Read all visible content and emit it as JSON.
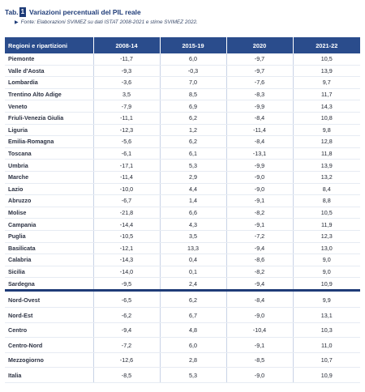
{
  "header": {
    "tab_label": "Tab.",
    "tab_number": "1",
    "title": "Variazioni percentuali del PIL reale",
    "source_arrow": "▶",
    "source": "Fonte: Elaborazioni SVIMEZ su dati ISTAT 2008-2021 e stime SVIMEZ 2022."
  },
  "table": {
    "columns": [
      "Regioni e ripartizioni",
      "2008-14",
      "2015-19",
      "2020",
      "2021-22"
    ],
    "regions": [
      [
        "Piemonte",
        "-11,7",
        "6,0",
        "-9,7",
        "10,5"
      ],
      [
        "Valle d'Aosta",
        "-9,3",
        "-0,3",
        "-9,7",
        "13,9"
      ],
      [
        "Lombardia",
        "-3,6",
        "7,0",
        "-7,6",
        "9,7"
      ],
      [
        "Trentino Alto Adige",
        "3,5",
        "8,5",
        "-8,3",
        "11,7"
      ],
      [
        "Veneto",
        "-7,9",
        "6,9",
        "-9,9",
        "14,3"
      ],
      [
        "Friuli-Venezia Giulia",
        "-11,1",
        "6,2",
        "-8,4",
        "10,8"
      ],
      [
        "Liguria",
        "-12,3",
        "1,2",
        "-11,4",
        "9,8"
      ],
      [
        "Emilia-Romagna",
        "-5,6",
        "6,2",
        "-8,4",
        "12,8"
      ],
      [
        "Toscana",
        "-6,1",
        "6,1",
        "-13,1",
        "11,8"
      ],
      [
        "Umbria",
        "-17,1",
        "5,3",
        "-9,9",
        "13,9"
      ],
      [
        "Marche",
        "-11,4",
        "2,9",
        "-9,0",
        "13,2"
      ],
      [
        "Lazio",
        "-10,0",
        "4,4",
        "-9,0",
        "8,4"
      ],
      [
        "Abruzzo",
        "-6,7",
        "1,4",
        "-9,1",
        "8,8"
      ],
      [
        "Molise",
        "-21,8",
        "6,6",
        "-8,2",
        "10,5"
      ],
      [
        "Campania",
        "-14,4",
        "4,3",
        "-9,1",
        "11,9"
      ],
      [
        "Puglia",
        "-10,5",
        "3,5",
        "-7,2",
        "12,3"
      ],
      [
        "Basilicata",
        "-12,1",
        "13,3",
        "-9,4",
        "13,0"
      ],
      [
        "Calabria",
        "-14,3",
        "0,4",
        "-8,6",
        "9,0"
      ],
      [
        "Sicilia",
        "-14,0",
        "0,1",
        "-8,2",
        "9,0"
      ],
      [
        "Sardegna",
        "-9,5",
        "2,4",
        "-9,4",
        "10,9"
      ]
    ],
    "macro": [
      [
        "Nord-Ovest",
        "-6,5",
        "6,2",
        "-8,4",
        "9,9"
      ],
      [
        "Nord-Est",
        "-6,2",
        "6,7",
        "-9,0",
        "13,1"
      ],
      [
        "Centro",
        "-9,4",
        "4,8",
        "-10,4",
        "10,3"
      ],
      [
        "Centro-Nord",
        "-7,2",
        "6,0",
        "-9,1",
        "11,0"
      ],
      [
        "Mezzogiorno",
        "-12,6",
        "2,8",
        "-8,5",
        "10,7"
      ],
      [
        "Italia",
        "-8,5",
        "5,3",
        "-9,0",
        "10,9"
      ]
    ]
  }
}
